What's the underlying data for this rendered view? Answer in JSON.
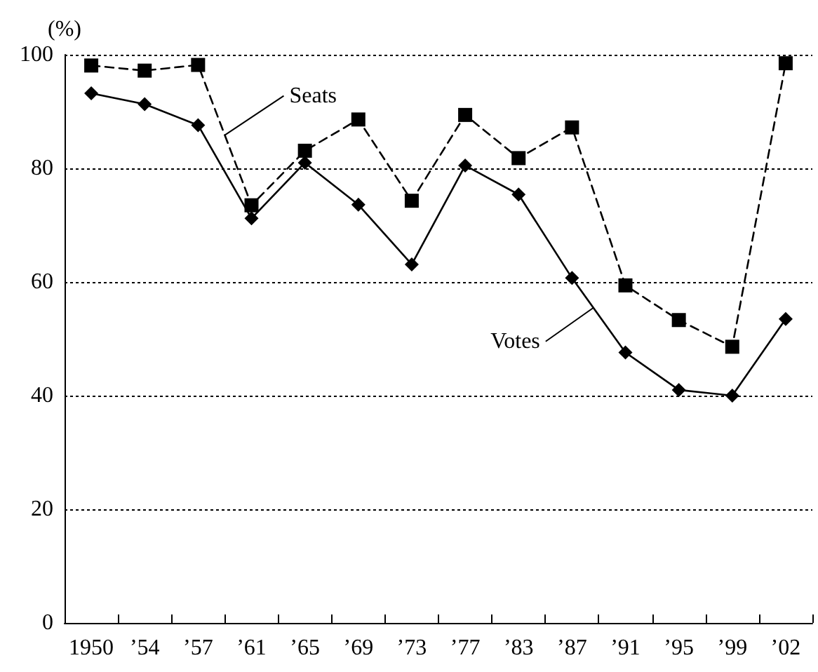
{
  "chart_data": {
    "type": "line",
    "ylabel": "(%)",
    "categories": [
      "1950",
      "’54",
      "’57",
      "’61",
      "’65",
      "’69",
      "’73",
      "’77",
      "’83",
      "’87",
      "’91",
      "’95",
      "’99",
      "’02"
    ],
    "series": [
      {
        "name": "Seats",
        "color": "#000000",
        "marker": "square",
        "line_style": "dashed",
        "values": [
          98.1,
          97.2,
          98.2,
          73.5,
          83.1,
          88.6,
          74.3,
          89.4,
          81.8,
          87.2,
          59.4,
          53.3,
          48.6,
          98.5
        ]
      },
      {
        "name": "Votes",
        "color": "#000000",
        "marker": "diamond",
        "line_style": "solid",
        "values": [
          93.2,
          91.3,
          87.6,
          71.2,
          81.0,
          73.6,
          63.1,
          80.5,
          75.4,
          60.7,
          47.6,
          41.0,
          40.0,
          53.5
        ]
      }
    ],
    "ylim": [
      0,
      100
    ],
    "yticks": [
      0,
      20,
      40,
      60,
      80,
      100
    ],
    "grid": "y",
    "legend": false
  }
}
